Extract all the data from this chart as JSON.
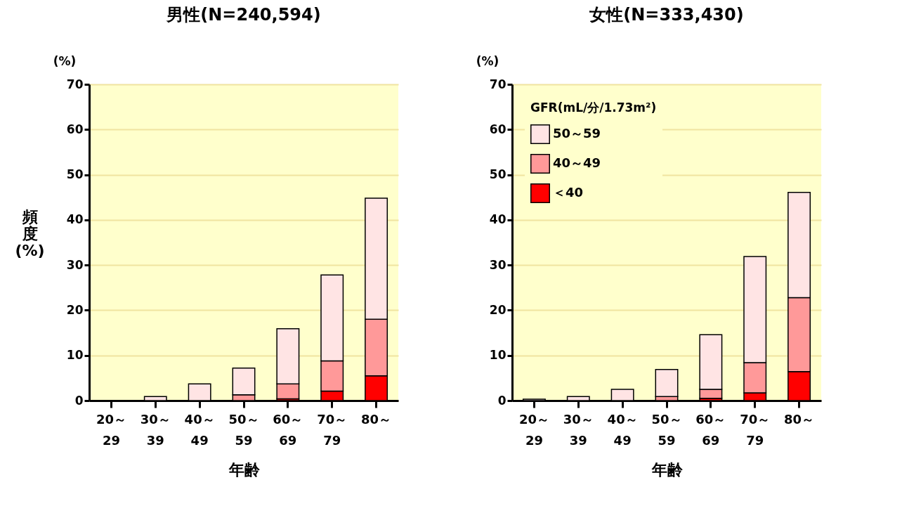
{
  "chart_data": [
    {
      "type": "bar",
      "stacked": true,
      "title": "男性(N=240,594)",
      "xlabel": "年齢",
      "ylabel": "頻度(%)",
      "annotations": [
        "(%)"
      ],
      "categories": [
        "20～\n29",
        "30～\n39",
        "40～\n49",
        "50～\n59",
        "60～\n69",
        "70～\n79",
        "80～"
      ],
      "series": [
        {
          "color": "#ff0000",
          "values": [
            0,
            0,
            0,
            0,
            0.4,
            2.1,
            5.5
          ]
        },
        {
          "color": "#ff9999",
          "values": [
            0,
            0,
            0,
            1.3,
            3.3,
            6.7,
            12.5
          ]
        },
        {
          "color": "#ffe4e4",
          "values": [
            0,
            0.9,
            3.7,
            5.9,
            12.2,
            19.0,
            26.8
          ]
        }
      ],
      "ylim": [
        0,
        70
      ],
      "yticks": [
        0,
        10,
        20,
        30,
        40,
        50,
        60,
        70
      ],
      "grid": "y",
      "legend": false
    },
    {
      "type": "bar",
      "stacked": true,
      "title": "女性(N=333,430)",
      "xlabel": "年齢",
      "annotations": [
        "(%)"
      ],
      "legend_title": "GFR(mL/分/1.73m²)",
      "categories": [
        "20～\n29",
        "30～\n39",
        "40～\n49",
        "50～\n59",
        "60～\n69",
        "70～\n79",
        "80～"
      ],
      "series": [
        {
          "name": "＜40",
          "color": "#ff0000",
          "values": [
            0,
            0,
            0,
            0,
            0.5,
            1.7,
            6.4
          ]
        },
        {
          "name": "40～49",
          "color": "#ff9999",
          "values": [
            0,
            0,
            0,
            0.9,
            2.0,
            6.7,
            16.4
          ]
        },
        {
          "name": "50～59",
          "color": "#ffe4e4",
          "values": [
            0.3,
            0.9,
            2.5,
            6.0,
            12.1,
            23.5,
            23.3
          ]
        }
      ],
      "ylim": [
        0,
        70
      ],
      "yticks": [
        0,
        10,
        20,
        30,
        40,
        50,
        60,
        70
      ],
      "grid": "y",
      "legend": "top left"
    }
  ]
}
